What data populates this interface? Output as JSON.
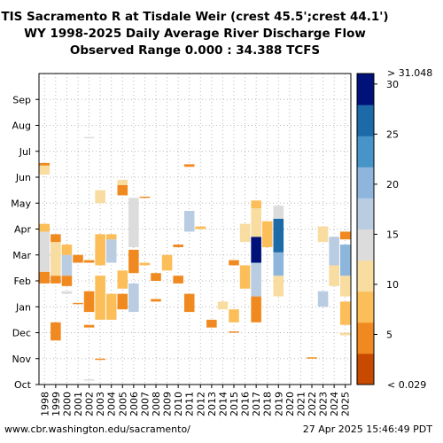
{
  "title_lines": [
    "TIS Sacramento R at Tisdale Weir (crest 45.5';crest 44.1')",
    "WY 1998-2025 Daily Average River Discharge Flow",
    "Observed Range 0.000 : 34.388 TCFS"
  ],
  "footer": {
    "left": "www.cbr.washington.edu/sacramento/",
    "right": "27 Apr 2025 15:46:49 PDT"
  },
  "chart_data": {
    "type": "heatmap",
    "x_categories": [
      "1998",
      "1999",
      "2000",
      "2001",
      "2002",
      "2003",
      "2004",
      "2005",
      "2006",
      "2007",
      "2008",
      "2009",
      "2010",
      "2011",
      "2012",
      "2013",
      "2014",
      "2015",
      "2016",
      "2017",
      "2018",
      "2019",
      "2020",
      "2021",
      "2022",
      "2023",
      "2024",
      "2025"
    ],
    "y_months": [
      "Oct",
      "Nov",
      "Dec",
      "Jan",
      "Feb",
      "Mar",
      "Apr",
      "May",
      "Jun",
      "Jul",
      "Aug",
      "Sep"
    ],
    "colorbar": {
      "min": 0,
      "max": 31.048,
      "ticks": [
        5,
        10,
        15,
        20,
        25,
        30
      ],
      "top_label": "> 31.048",
      "bottom_label": "< 0.029",
      "colors": [
        "#c84a00",
        "#f08a20",
        "#fbbe58",
        "#f8dca0",
        "#dcdcdc",
        "#b9cce2",
        "#8eb6dc",
        "#4694c8",
        "#1c6aa8",
        "#00117a"
      ]
    },
    "grid": "dotted",
    "blocks": [
      {
        "year": "1998",
        "start": 3.9,
        "end": 4.35,
        "value": 2
      },
      {
        "year": "1998",
        "start": 4.35,
        "end": 5.9,
        "value": 15
      },
      {
        "year": "1998",
        "start": 5.9,
        "end": 6.2,
        "value": 8
      },
      {
        "year": "1998",
        "start": 8.1,
        "end": 8.45,
        "value": 10
      },
      {
        "year": "1998",
        "start": 8.45,
        "end": 8.55,
        "value": 2
      },
      {
        "year": "1999",
        "start": 1.7,
        "end": 2.4,
        "value": 4
      },
      {
        "year": "1999",
        "start": 3.9,
        "end": 4.2,
        "value": 3
      },
      {
        "year": "1999",
        "start": 4.2,
        "end": 5.5,
        "value": 11
      },
      {
        "year": "1999",
        "start": 5.5,
        "end": 5.8,
        "value": 4
      },
      {
        "year": "2000",
        "start": 3.5,
        "end": 3.6,
        "value": 15
      },
      {
        "year": "2000",
        "start": 3.8,
        "end": 4.2,
        "value": 3
      },
      {
        "year": "2000",
        "start": 4.2,
        "end": 5.0,
        "value": 16
      },
      {
        "year": "2000",
        "start": 5.0,
        "end": 5.4,
        "value": 6
      },
      {
        "year": "2001",
        "start": 3.1,
        "end": 3.15,
        "value": 2
      },
      {
        "year": "2001",
        "start": 4.7,
        "end": 5.0,
        "value": 5
      },
      {
        "year": "2002",
        "start": 0.15,
        "end": 0.2,
        "value": 15
      },
      {
        "year": "2002",
        "start": 2.2,
        "end": 2.3,
        "value": 3
      },
      {
        "year": "2002",
        "start": 2.8,
        "end": 3.6,
        "value": 3
      },
      {
        "year": "2002",
        "start": 4.7,
        "end": 4.8,
        "value": 3
      },
      {
        "year": "2002",
        "start": 9.5,
        "end": 9.55,
        "value": 15
      },
      {
        "year": "2003",
        "start": 0.95,
        "end": 1.0,
        "value": 3
      },
      {
        "year": "2003",
        "start": 2.5,
        "end": 4.2,
        "value": 7
      },
      {
        "year": "2003",
        "start": 4.6,
        "end": 5.8,
        "value": 8
      },
      {
        "year": "2003",
        "start": 7.0,
        "end": 7.5,
        "value": 11
      },
      {
        "year": "2004",
        "start": 2.5,
        "end": 3.5,
        "value": 6
      },
      {
        "year": "2004",
        "start": 4.7,
        "end": 5.6,
        "value": 16
      },
      {
        "year": "2004",
        "start": 5.6,
        "end": 5.8,
        "value": 6
      },
      {
        "year": "2005",
        "start": 2.9,
        "end": 3.5,
        "value": 3
      },
      {
        "year": "2005",
        "start": 3.7,
        "end": 4.4,
        "value": 7
      },
      {
        "year": "2005",
        "start": 7.3,
        "end": 7.7,
        "value": 2
      },
      {
        "year": "2005",
        "start": 7.7,
        "end": 7.9,
        "value": 12
      },
      {
        "year": "2006",
        "start": 2.8,
        "end": 3.9,
        "value": 17
      },
      {
        "year": "2006",
        "start": 4.3,
        "end": 5.2,
        "value": 4
      },
      {
        "year": "2006",
        "start": 5.3,
        "end": 7.2,
        "value": 15
      },
      {
        "year": "2007",
        "start": 4.6,
        "end": 4.7,
        "value": 7
      },
      {
        "year": "2007",
        "start": 7.2,
        "end": 7.25,
        "value": 2
      },
      {
        "year": "2008",
        "start": 3.2,
        "end": 3.3,
        "value": 3
      },
      {
        "year": "2008",
        "start": 4.0,
        "end": 4.3,
        "value": 5
      },
      {
        "year": "2009",
        "start": 4.4,
        "end": 5.0,
        "value": 7
      },
      {
        "year": "2010",
        "start": 3.9,
        "end": 4.2,
        "value": 4
      },
      {
        "year": "2010",
        "start": 5.3,
        "end": 5.4,
        "value": 3
      },
      {
        "year": "2011",
        "start": 2.8,
        "end": 3.5,
        "value": 3
      },
      {
        "year": "2011",
        "start": 5.9,
        "end": 6.7,
        "value": 17
      },
      {
        "year": "2011",
        "start": 8.4,
        "end": 8.5,
        "value": 2
      },
      {
        "year": "2012",
        "start": 6.0,
        "end": 6.1,
        "value": 6
      },
      {
        "year": "2013",
        "start": 2.2,
        "end": 2.5,
        "value": 3
      },
      {
        "year": "2014",
        "start": 2.9,
        "end": 3.2,
        "value": 10
      },
      {
        "year": "2015",
        "start": 2.0,
        "end": 2.05,
        "value": 3
      },
      {
        "year": "2015",
        "start": 2.4,
        "end": 2.9,
        "value": 8
      },
      {
        "year": "2015",
        "start": 4.6,
        "end": 4.8,
        "value": 5
      },
      {
        "year": "2016",
        "start": 3.7,
        "end": 4.6,
        "value": 6
      },
      {
        "year": "2016",
        "start": 5.5,
        "end": 6.2,
        "value": 10
      },
      {
        "year": "2017",
        "start": 2.4,
        "end": 3.4,
        "value": 5
      },
      {
        "year": "2017",
        "start": 3.4,
        "end": 4.7,
        "value": 18
      },
      {
        "year": "2017",
        "start": 4.7,
        "end": 5.7,
        "value": 31
      },
      {
        "year": "2017",
        "start": 5.7,
        "end": 6.8,
        "value": 12
      },
      {
        "year": "2017",
        "start": 6.8,
        "end": 7.1,
        "value": 6
      },
      {
        "year": "2018",
        "start": 5.3,
        "end": 6.3,
        "value": 6
      },
      {
        "year": "2019",
        "start": 3.4,
        "end": 4.2,
        "value": 9
      },
      {
        "year": "2019",
        "start": 4.2,
        "end": 5.1,
        "value": 19
      },
      {
        "year": "2019",
        "start": 5.1,
        "end": 6.4,
        "value": 29
      },
      {
        "year": "2019",
        "start": 6.4,
        "end": 6.9,
        "value": 14
      },
      {
        "year": "2022",
        "start": 1.0,
        "end": 1.05,
        "value": 4
      },
      {
        "year": "2023",
        "start": 3.0,
        "end": 3.6,
        "value": 18
      },
      {
        "year": "2023",
        "start": 5.5,
        "end": 6.1,
        "value": 11
      },
      {
        "year": "2024",
        "start": 3.8,
        "end": 4.6,
        "value": 9
      },
      {
        "year": "2024",
        "start": 4.6,
        "end": 5.7,
        "value": 18
      },
      {
        "year": "2025",
        "start": 1.9,
        "end": 2.0,
        "value": 10
      },
      {
        "year": "2025",
        "start": 2.3,
        "end": 3.2,
        "value": 7
      },
      {
        "year": "2025",
        "start": 3.4,
        "end": 4.2,
        "value": 11
      },
      {
        "year": "2025",
        "start": 4.2,
        "end": 5.4,
        "value": 22
      },
      {
        "year": "2025",
        "start": 5.6,
        "end": 5.9,
        "value": 2
      }
    ]
  }
}
